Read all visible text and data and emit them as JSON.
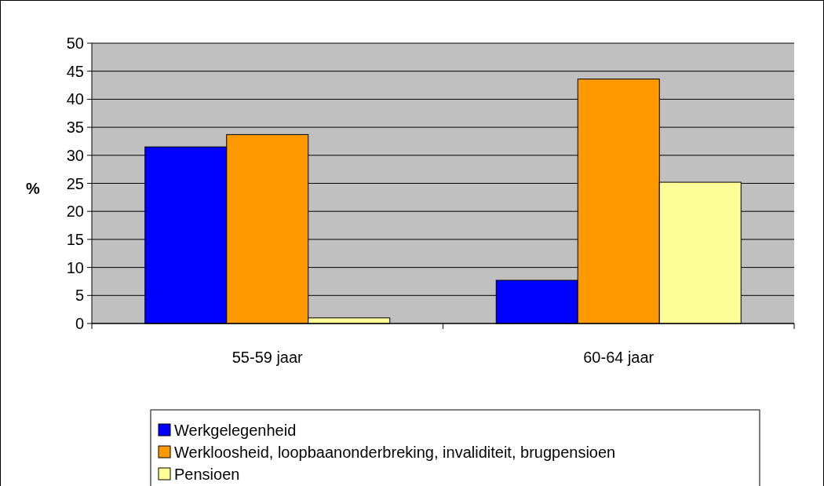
{
  "chart_data": {
    "type": "bar",
    "ylabel": "%",
    "categories": [
      "55-59 jaar",
      "60-64 jaar"
    ],
    "series": [
      {
        "name": "Werkgelegenheid",
        "color": "#0000ff",
        "values": [
          31.5,
          7.7
        ]
      },
      {
        "name": "Werkloosheid, loopbaanonderbreking, invaliditeit, brugpensioen",
        "color": "#ff9900",
        "values": [
          33.7,
          43.6
        ]
      },
      {
        "name": "Pensioen",
        "color": "#ffff99",
        "values": [
          1.0,
          25.2
        ]
      }
    ],
    "ylim": [
      0,
      50
    ],
    "yticks": [
      0,
      5,
      10,
      15,
      20,
      25,
      30,
      35,
      40,
      45,
      50
    ],
    "grid": "y",
    "legend": "bottom"
  }
}
